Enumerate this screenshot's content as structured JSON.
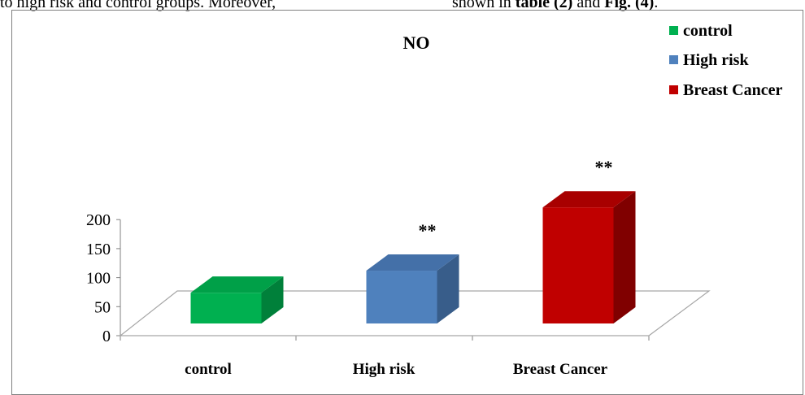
{
  "page_text": {
    "left": "to high risk and control groups. Moreover,",
    "right": "shown in table (2) and Fig. (4)."
  },
  "chart_data": {
    "type": "bar",
    "title": "NO",
    "categories": [
      "control",
      "High risk",
      "Breast Cancer"
    ],
    "series": [
      {
        "values": [
          53,
          91,
          200
        ],
        "colors": [
          "#00b050",
          "#4f81bd",
          "#c00000"
        ],
        "side_colors": [
          "#00803a",
          "#385d8a",
          "#800000"
        ],
        "top_colors": [
          "#00a048",
          "#4470a8",
          "#a80000"
        ]
      }
    ],
    "annotations": [
      "",
      "**",
      "**"
    ],
    "yticks": [
      0,
      50,
      100,
      150,
      200
    ],
    "ylim": [
      0,
      200
    ],
    "legend": {
      "placement": "top-right",
      "entries": [
        {
          "label": "control",
          "color": "#00b050"
        },
        {
          "label": "High risk",
          "color": "#4f81bd"
        },
        {
          "label": "Breast Cancer",
          "color": "#c00000"
        }
      ]
    },
    "grid": false,
    "style": "3d-column"
  }
}
